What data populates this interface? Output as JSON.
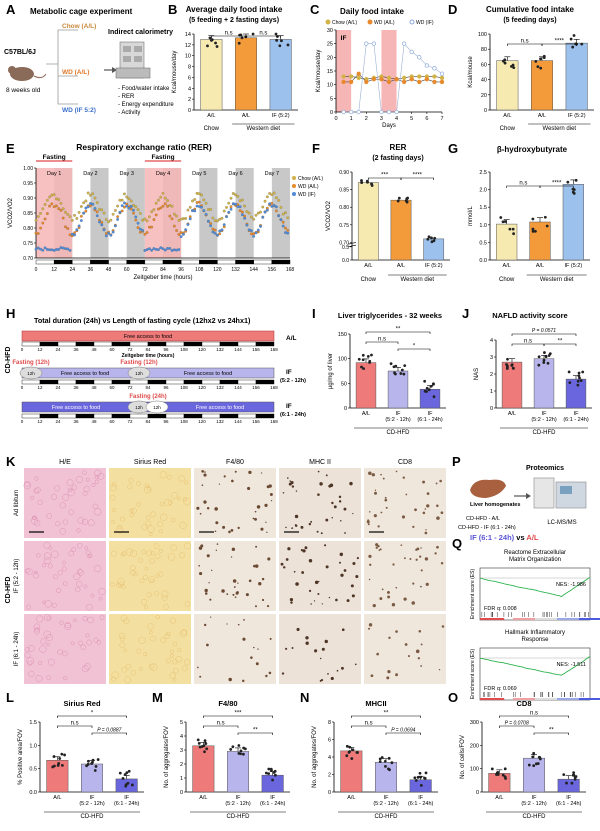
{
  "panels": {
    "A": {
      "letter": "A",
      "title": "Metabolic cage experiment",
      "mouse": "C57BL/6J",
      "age": "8 weeks old",
      "group_chow": "Chow (A/L)",
      "group_wd_al": "WD (A/L)",
      "group_wd_if": "WD (IF 5:2)",
      "calorimetry_title": "Indirect calorimetry",
      "list": [
        "- Food/water intake",
        "- RER",
        "- Energy expenditure",
        "- Activity"
      ]
    },
    "B": {
      "letter": "B",
      "title_line1": "Average daily food intake",
      "title_line2": "(5 feeding + 2 fasting days)",
      "ylabel": "Kcal/mouse/day",
      "yticks": [
        "0",
        "2",
        "4",
        "6",
        "8",
        "10",
        "12",
        "14"
      ],
      "sig": [
        "n.s",
        "n.s"
      ]
    },
    "C": {
      "letter": "C",
      "title": "Daily food intake",
      "ylabel": "Kcal/mouse/day",
      "xlabel": "Days",
      "legend": [
        "Chow (A/L)",
        "WD (A/L)",
        "WD (IF)"
      ],
      "if_label": "IF",
      "yticks": [
        "0",
        "5",
        "10",
        "15",
        "20",
        "25",
        "30"
      ],
      "xticks": [
        "0",
        "1",
        "2",
        "3",
        "4",
        "5",
        "6",
        "7"
      ]
    },
    "D": {
      "letter": "D",
      "title_line1": "Cumulative food intake",
      "title_line2": "(5 feeding days)",
      "ylabel": "Kcal/mouse",
      "yticks": [
        "0",
        "20",
        "40",
        "60",
        "80",
        "100"
      ],
      "sig": [
        "n.s",
        "****"
      ]
    },
    "E": {
      "letter": "E",
      "title": "Respiratory exchange ratio (RER)",
      "ylabel": "VCO2/VO2",
      "xlabel": "Zeitgeber time (hours)",
      "fasting": [
        "Fasting",
        "Fasting"
      ],
      "days": [
        "Day 1",
        "Day 2",
        "Day 3",
        "Day 4",
        "Day 5",
        "Day 6",
        "Day 7"
      ],
      "legend": [
        "Chow (A/L)",
        "WD (A/L)",
        "WD (IF)"
      ],
      "yticks": [
        "0.70",
        "0.75",
        "0.80",
        "0.85",
        "0.90",
        "0.95",
        "1.00"
      ],
      "xticks": [
        "0",
        "12",
        "24",
        "36",
        "48",
        "60",
        "72",
        "84",
        "96",
        "108",
        "120",
        "132",
        "144",
        "156",
        "168"
      ]
    },
    "F": {
      "letter": "F",
      "title_line1": "RER",
      "title_line2": "(2 fasting days)",
      "ylabel": "VCO2/VO2",
      "yticks": [
        "0.0",
        "0.5",
        "0.70",
        "0.75",
        "0.80",
        "0.85",
        "0.90"
      ],
      "sig": [
        "***",
        "****"
      ]
    },
    "G": {
      "letter": "G",
      "title": "β-hydroxybutyrate",
      "ylabel": "mmol/L",
      "yticks": [
        "0.0",
        "0.5",
        "1.0",
        "1.5",
        "2.0",
        "2.5"
      ],
      "sig": [
        "n.s",
        "****"
      ]
    },
    "H": {
      "letter": "H",
      "title": "Total duration (24h) vs Length of fasting cycle (12hx2 vs 24hx1)",
      "side_label": "CD-HFD",
      "free_access": "Free access to food",
      "zeitgeber": "Zeitgeber time (hours)",
      "fasting_12": "Fasting (12h)",
      "fasting_24": "Fasting (24h)",
      "h12": "12h",
      "h12b": "12h",
      "row_labels": [
        "A/L",
        "IF\n(5:2 - 12h)",
        "IF\n(6:1 - 24h)"
      ],
      "ticks": [
        "0",
        "12",
        "24",
        "36",
        "48",
        "60",
        "72",
        "84",
        "96",
        "108",
        "120",
        "132",
        "144",
        "156",
        "168"
      ]
    },
    "I": {
      "letter": "I",
      "title": "Liver triglycerides - 32 weeks",
      "ylabel": "µg/mg of liver",
      "yticks": [
        "0",
        "50",
        "100",
        "150"
      ],
      "sig": [
        "**",
        "n.s",
        "*"
      ],
      "footer": "CD-HFD"
    },
    "J": {
      "letter": "J",
      "title": "NAFLD activity score",
      "ylabel": "NAS",
      "yticks": [
        "0",
        "1",
        "2",
        "3",
        "4"
      ],
      "pval": "P = 0.0571",
      "sig": [
        "n.s",
        "**"
      ],
      "footer": "CD-HFD"
    },
    "K": {
      "letter": "K",
      "columns": [
        "H/E",
        "Sirius Red",
        "F4/80",
        "MHC II",
        "CD8"
      ],
      "rows": [
        "Ad libitum",
        "IF (5:2 - 12h)",
        "IF (6:1 - 24h)"
      ],
      "side": "CD-HFD"
    },
    "P": {
      "letter": "P",
      "title": "Proteomics",
      "sample": "Liver homogenates",
      "group1": "CD-HFD - A/L",
      "group2": "CD-HFD - IF (6:1 - 24h)",
      "instrument": "LC-MS/MS"
    },
    "Q": {
      "letter": "Q",
      "comparison_a": "IF (6:1 - 24h)",
      "vs": " vs ",
      "comparison_b": "A/L",
      "gsea1_title": "Reactome Extracellular\nMatrix Organization",
      "gsea1_nes": "NES: -1.986",
      "gsea1_fdr": "FDR q: 0.008",
      "gsea2_title": "Hallmark Inflammatory\nResponse",
      "gsea2_nes": "NES: -1.511",
      "gsea2_fdr": "FDR q: 0.069",
      "ylabel": "Enrichment score (ES)"
    },
    "L": {
      "letter": "L",
      "title": "Sirius Red",
      "ylabel": "% Positive area/FOV",
      "yticks": [
        "0.0",
        "0.5",
        "1.0",
        "1.5"
      ],
      "sig": [
        "*",
        "n.s",
        "P = 0.0887"
      ],
      "footer": "CD-HFD"
    },
    "M": {
      "letter": "M",
      "title": "F4/80",
      "ylabel": "No. of aggregates/FOV",
      "yticks": [
        "0",
        "1",
        "2",
        "3",
        "4",
        "5"
      ],
      "sig": [
        "***",
        "n.s",
        "**"
      ],
      "footer": "CD-HFD"
    },
    "N": {
      "letter": "N",
      "title": "MHCII",
      "ylabel": "No. of aggregates/FOV",
      "yticks": [
        "0",
        "2",
        "4",
        "6",
        "8"
      ],
      "sig": [
        "**",
        "n.s",
        "P = 0.0694"
      ],
      "footer": "CD-HFD"
    },
    "O": {
      "letter": "O",
      "title": "CD8",
      "ylabel": "No. of cells/FOV",
      "yticks": [
        "0",
        "100",
        "200",
        "300"
      ],
      "sig": [
        "n.s",
        "P = 0.0708",
        "**"
      ],
      "footer": "CD-HFD"
    }
  },
  "xcats": {
    "chow_wd": [
      "A/L",
      "A/L",
      "IF (5:2)"
    ],
    "group_chow": "Chow",
    "group_wd": "Western diet",
    "hfd": [
      "A/L",
      "IF\n(5:2 - 12h)",
      "IF\n(6:1 - 24h)"
    ]
  },
  "colors": {
    "chow": "#f6eab0",
    "wdal": "#f39a3a",
    "wdif": "#9cc1ec",
    "al": "#ef7a7a",
    "if12": "#b7b5ec",
    "if24": "#6a66dd",
    "fasting": "#f7b6b6",
    "night": "#c8c8c8"
  },
  "chart_data": [
    {
      "panel": "B",
      "type": "bar",
      "categories": [
        "Chow A/L",
        "WD A/L",
        "WD IF (5:2)"
      ],
      "values": [
        13.0,
        13.3,
        13.0
      ],
      "ylim": [
        0,
        16
      ]
    },
    {
      "panel": "C",
      "type": "line",
      "x": [
        0.5,
        1,
        1.5,
        2,
        2.5,
        3,
        3.5,
        4,
        4.5,
        5,
        5.5,
        6,
        6.5,
        7
      ],
      "series": [
        {
          "name": "Chow (A/L)",
          "values": [
            13,
            13,
            12.5,
            12,
            12.5,
            13,
            12.5,
            12,
            12.5,
            13,
            13,
            13,
            13,
            12.5
          ]
        },
        {
          "name": "WD (A/L)",
          "values": [
            11,
            11,
            14,
            11,
            12,
            12,
            11,
            12,
            11,
            12,
            11,
            12,
            11,
            11
          ]
        },
        {
          "name": "WD (IF)",
          "values": [
            0,
            0,
            0,
            25,
            25,
            0,
            0,
            0,
            25,
            22,
            20,
            17,
            16,
            14
          ]
        }
      ],
      "ylim": [
        0,
        30
      ]
    },
    {
      "panel": "D",
      "type": "bar",
      "categories": [
        "Chow A/L",
        "WD A/L",
        "WD IF (5:2)"
      ],
      "values": [
        65,
        65,
        88
      ],
      "ylim": [
        0,
        100
      ]
    },
    {
      "panel": "F",
      "type": "bar",
      "categories": [
        "Chow A/L",
        "WD A/L",
        "WD IF (5:2)"
      ],
      "values": [
        0.87,
        0.82,
        0.71
      ]
    },
    {
      "panel": "G",
      "type": "bar",
      "categories": [
        "Chow A/L",
        "WD A/L",
        "WD IF (5:2)"
      ],
      "values": [
        1.02,
        1.08,
        2.15
      ],
      "ylim": [
        0,
        2.5
      ]
    },
    {
      "panel": "I",
      "type": "bar",
      "categories": [
        "A/L",
        "IF (5:2 - 12h)",
        "IF (6:1 - 24h)"
      ],
      "values": [
        92,
        75,
        38
      ],
      "ylim": [
        0,
        150
      ]
    },
    {
      "panel": "J",
      "type": "bar",
      "categories": [
        "A/L",
        "IF (5:2 - 12h)",
        "IF (6:1 - 24h)"
      ],
      "values": [
        2.7,
        2.9,
        1.7
      ],
      "ylim": [
        0,
        4
      ]
    },
    {
      "panel": "L",
      "type": "bar",
      "categories": [
        "A/L",
        "IF (5:2 - 12h)",
        "IF (6:1 - 24h)"
      ],
      "values": [
        0.68,
        0.6,
        0.28
      ],
      "ylim": [
        0,
        1.5
      ]
    },
    {
      "panel": "M",
      "type": "bar",
      "categories": [
        "A/L",
        "IF (5:2 - 12h)",
        "IF (6:1 - 24h)"
      ],
      "values": [
        3.3,
        2.9,
        1.2
      ],
      "ylim": [
        0,
        5
      ]
    },
    {
      "panel": "N",
      "type": "bar",
      "categories": [
        "A/L",
        "IF (5:2 - 12h)",
        "IF (6:1 - 24h)"
      ],
      "values": [
        4.7,
        3.4,
        1.4
      ],
      "ylim": [
        0,
        8
      ]
    },
    {
      "panel": "O",
      "type": "bar",
      "categories": [
        "A/L",
        "IF (5:2 - 12h)",
        "IF (6:1 - 24h)"
      ],
      "values": [
        80,
        145,
        55
      ],
      "ylim": [
        0,
        300
      ]
    }
  ]
}
